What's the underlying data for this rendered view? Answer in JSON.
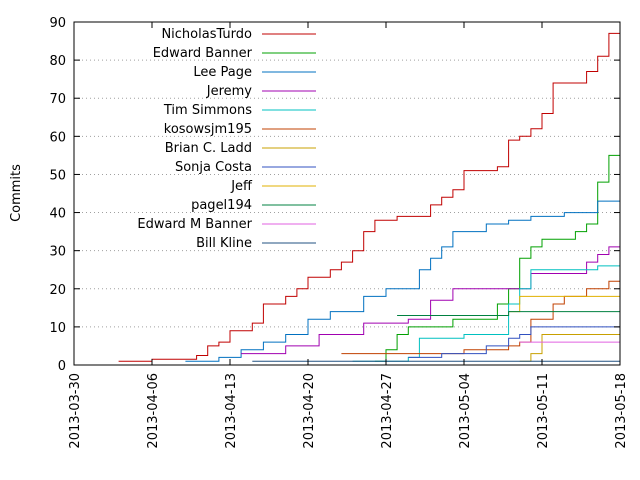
{
  "chart_data": {
    "type": "line",
    "ylabel": "Commits",
    "ylim": [
      0,
      90
    ],
    "yticks": [
      0,
      10,
      20,
      30,
      40,
      50,
      60,
      70,
      80,
      90
    ],
    "xlim": [
      "2013-03-30",
      "2013-05-18"
    ],
    "xticks": [
      "2013-03-30",
      "2013-04-06",
      "2013-04-13",
      "2013-04-20",
      "2013-04-27",
      "2013-05-04",
      "2013-05-11",
      "2013-05-18"
    ],
    "grid": "horizontal dotted",
    "legend": "top-left",
    "series": [
      {
        "name": "NicholasTurdo",
        "color": "#c00000",
        "points": [
          [
            "2013-04-03",
            1
          ],
          [
            "2013-04-06",
            1.5
          ],
          [
            "2013-04-10",
            2.5
          ],
          [
            "2013-04-11",
            5
          ],
          [
            "2013-04-12",
            6
          ],
          [
            "2013-04-13",
            9
          ],
          [
            "2013-04-15",
            11
          ],
          [
            "2013-04-16",
            16
          ],
          [
            "2013-04-18",
            18
          ],
          [
            "2013-04-19",
            20
          ],
          [
            "2013-04-20",
            23
          ],
          [
            "2013-04-22",
            25
          ],
          [
            "2013-04-23",
            27
          ],
          [
            "2013-04-24",
            30
          ],
          [
            "2013-04-25",
            35
          ],
          [
            "2013-04-26",
            38
          ],
          [
            "2013-04-28",
            39
          ],
          [
            "2013-05-01",
            42
          ],
          [
            "2013-05-02",
            44
          ],
          [
            "2013-05-03",
            46
          ],
          [
            "2013-05-04",
            51
          ],
          [
            "2013-05-07",
            52
          ],
          [
            "2013-05-08",
            59
          ],
          [
            "2013-05-09",
            60
          ],
          [
            "2013-05-10",
            62
          ],
          [
            "2013-05-11",
            66
          ],
          [
            "2013-05-12",
            74
          ],
          [
            "2013-05-15",
            77
          ],
          [
            "2013-05-16",
            81
          ],
          [
            "2013-05-17",
            87
          ],
          [
            "2013-05-18",
            89
          ]
        ]
      },
      {
        "name": "Edward Banner",
        "color": "#00a000",
        "points": [
          [
            "2013-04-26",
            1
          ],
          [
            "2013-04-27",
            4
          ],
          [
            "2013-04-28",
            8
          ],
          [
            "2013-04-29",
            10
          ],
          [
            "2013-05-03",
            12
          ],
          [
            "2013-05-07",
            16
          ],
          [
            "2013-05-08",
            20
          ],
          [
            "2013-05-09",
            28
          ],
          [
            "2013-05-10",
            31
          ],
          [
            "2013-05-11",
            33
          ],
          [
            "2013-05-14",
            35
          ],
          [
            "2013-05-15",
            37
          ],
          [
            "2013-05-16",
            48
          ],
          [
            "2013-05-17",
            55
          ],
          [
            "2013-05-18",
            61
          ]
        ]
      },
      {
        "name": "Lee Page",
        "color": "#0070c0",
        "points": [
          [
            "2013-04-09",
            1
          ],
          [
            "2013-04-12",
            2
          ],
          [
            "2013-04-14",
            4
          ],
          [
            "2013-04-16",
            6
          ],
          [
            "2013-04-18",
            8
          ],
          [
            "2013-04-20",
            12
          ],
          [
            "2013-04-22",
            14
          ],
          [
            "2013-04-25",
            18
          ],
          [
            "2013-04-27",
            20
          ],
          [
            "2013-04-30",
            25
          ],
          [
            "2013-05-01",
            28
          ],
          [
            "2013-05-02",
            31
          ],
          [
            "2013-05-03",
            35
          ],
          [
            "2013-05-06",
            37
          ],
          [
            "2013-05-08",
            38
          ],
          [
            "2013-05-10",
            39
          ],
          [
            "2013-05-13",
            40
          ],
          [
            "2013-05-16",
            43
          ],
          [
            "2013-05-18",
            43
          ]
        ]
      },
      {
        "name": "Jeremy",
        "color": "#a000b0",
        "points": [
          [
            "2013-04-14",
            3
          ],
          [
            "2013-04-18",
            5
          ],
          [
            "2013-04-21",
            8
          ],
          [
            "2013-04-25",
            11
          ],
          [
            "2013-04-29",
            12
          ],
          [
            "2013-05-01",
            17
          ],
          [
            "2013-05-03",
            20
          ],
          [
            "2013-05-09",
            20
          ],
          [
            "2013-05-10",
            24
          ],
          [
            "2013-05-15",
            27
          ],
          [
            "2013-05-16",
            29
          ],
          [
            "2013-05-17",
            31
          ],
          [
            "2013-05-18",
            31
          ]
        ]
      },
      {
        "name": "Tim Simmons",
        "color": "#00c0c0",
        "points": [
          [
            "2013-04-24",
            1
          ],
          [
            "2013-04-29",
            2
          ],
          [
            "2013-04-30",
            7
          ],
          [
            "2013-05-04",
            8
          ],
          [
            "2013-05-08",
            16
          ],
          [
            "2013-05-09",
            20
          ],
          [
            "2013-05-10",
            25
          ],
          [
            "2013-05-16",
            26
          ],
          [
            "2013-05-18",
            26
          ]
        ]
      },
      {
        "name": "kosowsjm195",
        "color": "#c04000",
        "points": [
          [
            "2013-04-23",
            3
          ],
          [
            "2013-05-04",
            4
          ],
          [
            "2013-05-08",
            5
          ],
          [
            "2013-05-09",
            6
          ],
          [
            "2013-05-10",
            12
          ],
          [
            "2013-05-12",
            16
          ],
          [
            "2013-05-13",
            18
          ],
          [
            "2013-05-15",
            20
          ],
          [
            "2013-05-17",
            22
          ],
          [
            "2013-05-18",
            22
          ]
        ]
      },
      {
        "name": "Brian C. Ladd",
        "color": "#c8a000",
        "points": [
          [
            "2013-05-09",
            1
          ],
          [
            "2013-05-10",
            3
          ],
          [
            "2013-05-11",
            8
          ],
          [
            "2013-05-18",
            8
          ]
        ]
      },
      {
        "name": "Sonja Costa",
        "color": "#3050c0",
        "points": [
          [
            "2013-04-29",
            2
          ],
          [
            "2013-05-02",
            3
          ],
          [
            "2013-05-06",
            5
          ],
          [
            "2013-05-08",
            7
          ],
          [
            "2013-05-09",
            8
          ],
          [
            "2013-05-10",
            10
          ],
          [
            "2013-05-18",
            10
          ]
        ]
      },
      {
        "name": "Jeff",
        "color": "#e0b000",
        "points": [
          [
            "2013-05-08",
            14
          ],
          [
            "2013-05-09",
            18
          ],
          [
            "2013-05-18",
            18
          ]
        ]
      },
      {
        "name": "pagel194",
        "color": "#008040",
        "points": [
          [
            "2013-04-28",
            13
          ],
          [
            "2013-05-08",
            14
          ],
          [
            "2013-05-18",
            14
          ]
        ]
      },
      {
        "name": "Edward M Banner",
        "color": "#e060e0",
        "points": [
          [
            "2013-05-09",
            6
          ],
          [
            "2013-05-18",
            6
          ]
        ]
      },
      {
        "name": "Bill Kline",
        "color": "#205080",
        "points": [
          [
            "2013-04-15",
            1
          ],
          [
            "2013-05-18",
            1
          ]
        ]
      }
    ]
  }
}
